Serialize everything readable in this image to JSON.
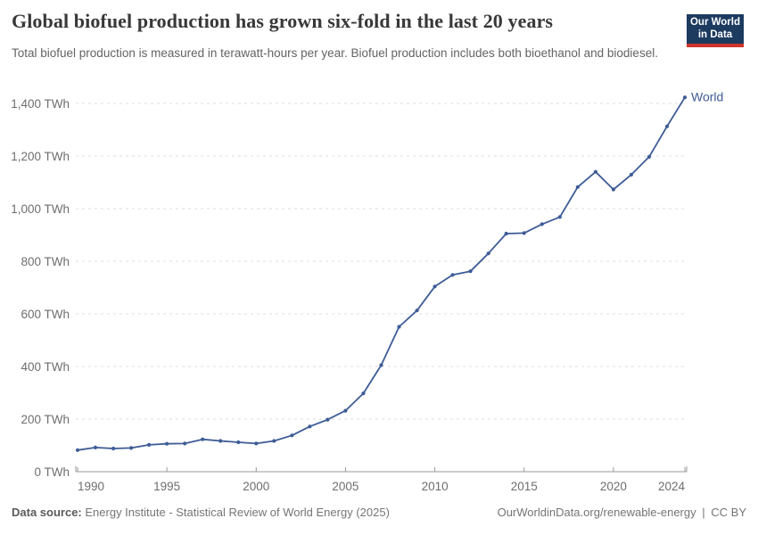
{
  "header": {
    "title": "Global biofuel production has grown six-fold in the last 20 years",
    "subtitle": "Total biofuel production is measured in terawatt-hours per year. Biofuel production includes both bioethanol and biodiesel.",
    "logo": {
      "line1": "Our World",
      "line2": "in Data"
    }
  },
  "colors": {
    "series_blue": "#3e5c96",
    "grid": "#dcdcdc",
    "axis": "#9a9a9a",
    "tick_text": "#6e6e6e",
    "logo_bg": "#1d3a5f",
    "logo_red": "#d0342c"
  },
  "chart_data": {
    "type": "line",
    "title": "Global biofuel production has grown six-fold in the last 20 years",
    "unit": "TWh",
    "grid": "horizontal-dashed",
    "legend": "end-of-line-label",
    "xlim": [
      1990,
      2024
    ],
    "ylim": [
      0,
      1400
    ],
    "x_ticks": [
      1990,
      1995,
      2000,
      2005,
      2010,
      2015,
      2020,
      2024
    ],
    "y_ticks": [
      0,
      200,
      400,
      600,
      800,
      1000,
      1200,
      1400
    ],
    "y_tick_suffix": " TWh",
    "x": [
      1990,
      1991,
      1992,
      1993,
      1994,
      1995,
      1996,
      1997,
      1998,
      1999,
      2000,
      2001,
      2002,
      2003,
      2004,
      2005,
      2006,
      2007,
      2008,
      2009,
      2010,
      2011,
      2012,
      2013,
      2014,
      2015,
      2016,
      2017,
      2018,
      2019,
      2020,
      2021,
      2022,
      2023,
      2024
    ],
    "series": [
      {
        "name": "World",
        "color": "#3e5c96",
        "values": [
          82,
          92,
          88,
          90,
          102,
          106,
          107,
          123,
          117,
          112,
          107,
          117,
          138,
          172,
          198,
          232,
          298,
          405,
          551,
          613,
          704,
          748,
          762,
          830,
          905,
          907,
          941,
          968,
          1082,
          1140,
          1073,
          1129,
          1197,
          1313,
          1423
        ]
      }
    ]
  },
  "footer": {
    "source_label": "Data source:",
    "source_text": "Energy Institute - Statistical Review of World Energy (2025)",
    "link": "OurWorldinData.org/renewable-energy",
    "separator": "|",
    "license": "CC BY"
  }
}
